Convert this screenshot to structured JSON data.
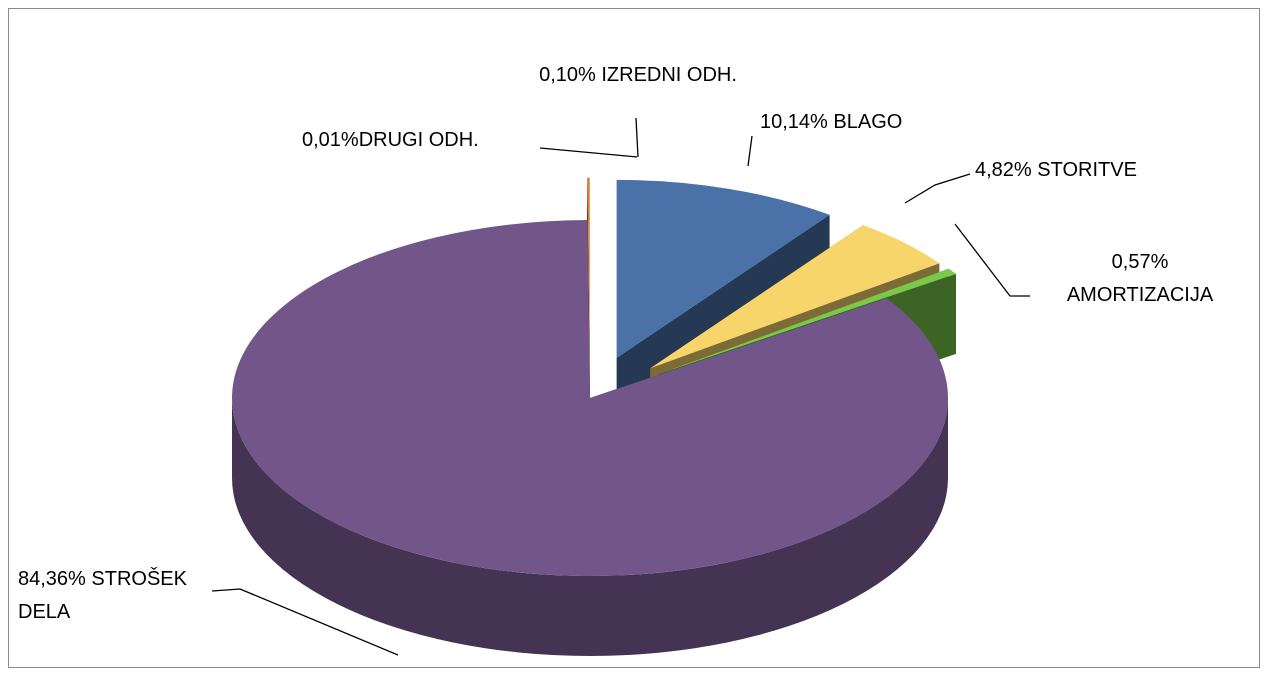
{
  "chart_data": {
    "type": "pie",
    "categories": [
      "BLAGO",
      "STORITVE",
      "AMORTIZACIJA",
      "STROŠEK DELA",
      "DRUGI ODH.",
      "IZREDNI ODH."
    ],
    "values": [
      10.14,
      4.82,
      0.57,
      84.36,
      0.01,
      0.1
    ],
    "value_labels": [
      "10,14%",
      "4,82%",
      "0,57%",
      "84,36%",
      "0,01%",
      "0,10%"
    ],
    "colors": [
      "#4a72a8",
      "#f8d56b",
      "#7cc84a",
      "#725589",
      "#c0392b",
      "#e07b30"
    ]
  }
}
